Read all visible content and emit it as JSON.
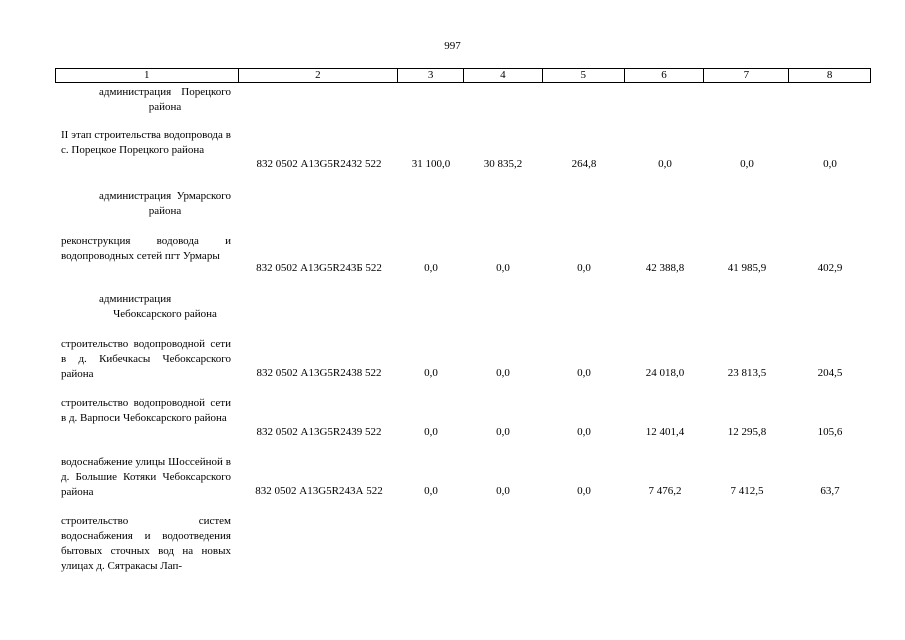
{
  "page_number": "997",
  "headers": [
    "1",
    "2",
    "3",
    "4",
    "5",
    "6",
    "7",
    "8"
  ],
  "rows": [
    {
      "kind": "org",
      "text": "администрация Порецкого района"
    },
    {
      "kind": "item",
      "text": "II этап строительства водопровода в с. Порецкое Порецкого района",
      "code": "832 0502 А13G5R2432 522",
      "v3": "31 100,0",
      "v4": "30 835,2",
      "v5": "264,8",
      "v6": "0,0",
      "v7": "0,0",
      "v8": "0,0"
    },
    {
      "kind": "org",
      "text": "администрация Урмарского района"
    },
    {
      "kind": "item",
      "text": "реконструкция водовода и водопроводных сетей пгт Урмары",
      "code": "832 0502 А13G5R243Б 522",
      "v3": "0,0",
      "v4": "0,0",
      "v5": "0,0",
      "v6": "42 388,8",
      "v7": "41 985,9",
      "v8": "402,9"
    },
    {
      "kind": "org",
      "text": "администрация Чебоксарского района"
    },
    {
      "kind": "item",
      "text": "строительство водопроводной сети в д. Кибечкасы Чебоксарского района",
      "code": "832 0502 А13G5R2438 522",
      "v3": "0,0",
      "v4": "0,0",
      "v5": "0,0",
      "v6": "24 018,0",
      "v7": "23 813,5",
      "v8": "204,5"
    },
    {
      "kind": "item",
      "text": "строительство водопроводной сети в д. Варпоси Чебоксарского района",
      "code": "832 0502 А13G5R2439 522",
      "v3": "0,0",
      "v4": "0,0",
      "v5": "0,0",
      "v6": "12 401,4",
      "v7": "12 295,8",
      "v8": "105,6"
    },
    {
      "kind": "item",
      "text": "водоснабжение улицы Шоссейной в д. Большие Котяки Чебоксарского района",
      "code": "832 0502 А13G5R243А 522",
      "v3": "0,0",
      "v4": "0,0",
      "v5": "0,0",
      "v6": "7 476,2",
      "v7": "7 412,5",
      "v8": "63,7"
    },
    {
      "kind": "item",
      "text": "строительство систем водоснабжения и водоотведения бытовых сточных вод на новых улицах д. Сятракасы Лап-"
    }
  ]
}
